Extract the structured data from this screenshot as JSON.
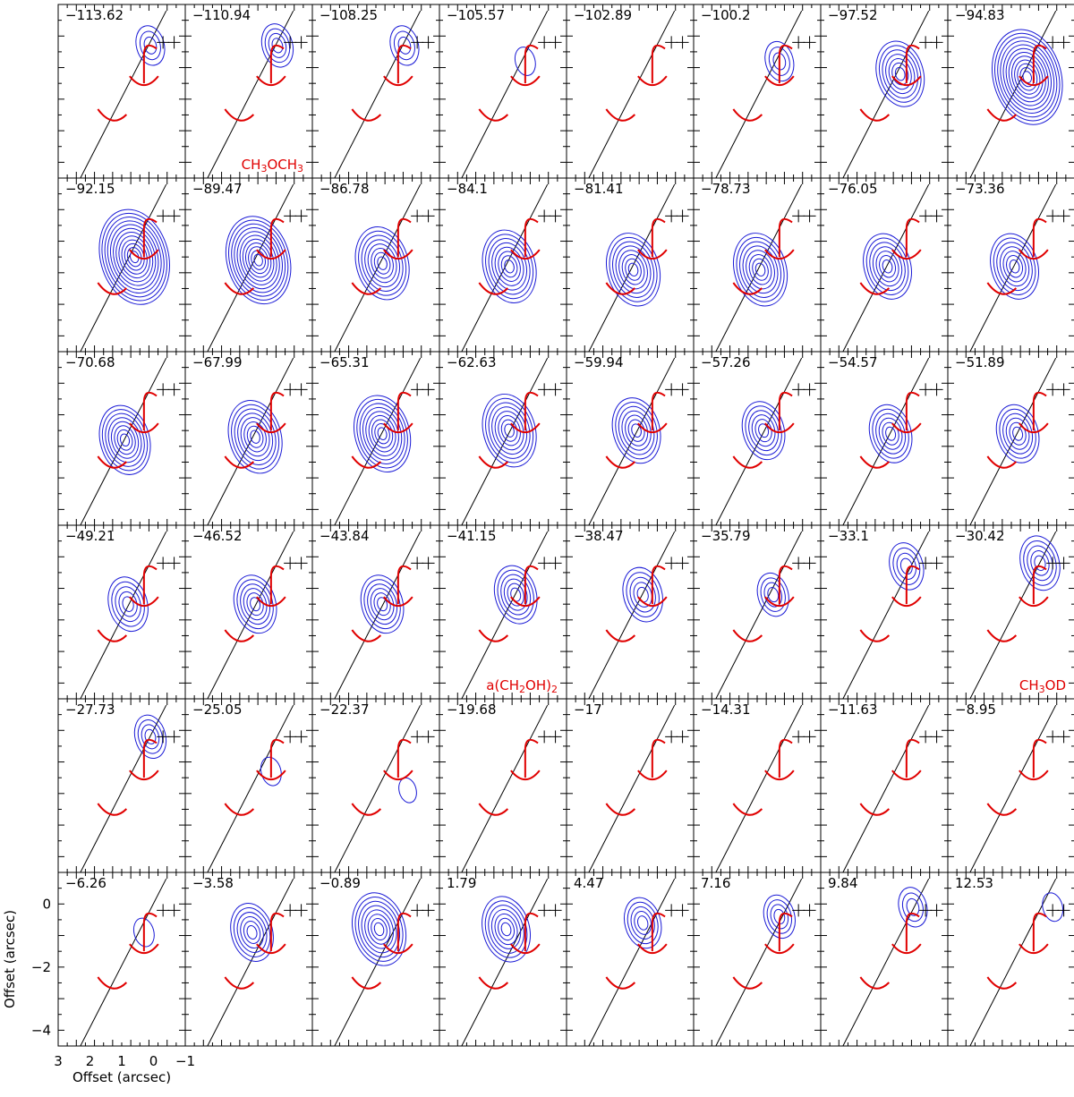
{
  "chart_data": {
    "type": "channel-map",
    "grid": {
      "rows": 6,
      "cols": 8
    },
    "colors": {
      "contour": "#1a1ad6",
      "overlay": "#e00000",
      "axis": "#000000",
      "background": "#ffffff"
    },
    "x_axis": {
      "label": "Offset (arcsec)",
      "ticks": [
        3,
        2,
        1,
        0,
        -1
      ],
      "range": [
        3,
        -1
      ]
    },
    "y_axis": {
      "label": "Offset (arcsec)",
      "ticks": [
        0,
        -2,
        -4
      ],
      "range": [
        1,
        -4.5
      ]
    },
    "channels": [
      {
        "velocity": "-113.62",
        "peak": 0.25,
        "dx": 0.1,
        "dy": -0.3
      },
      {
        "velocity": "-110.94",
        "peak": 0.3,
        "dx": 0.1,
        "dy": -0.3,
        "species": "CH3OCH3"
      },
      {
        "velocity": "-108.25",
        "peak": 0.25,
        "dx": 0.1,
        "dy": -0.3
      },
      {
        "velocity": "-105.57",
        "peak": 0.1,
        "dx": 0.3,
        "dy": -0.8
      },
      {
        "velocity": "-102.89",
        "peak": 0.0,
        "dx": 0,
        "dy": 0
      },
      {
        "velocity": "-100.2",
        "peak": 0.25,
        "dx": 0.3,
        "dy": -0.8
      },
      {
        "velocity": "-97.52",
        "peak": 0.6,
        "dx": 0.5,
        "dy": -1.2
      },
      {
        "velocity": "-94.83",
        "peak": 1.0,
        "dx": 0.5,
        "dy": -1.3
      },
      {
        "velocity": "-92.15",
        "peak": 1.0,
        "dx": 0.6,
        "dy": -1.5
      },
      {
        "velocity": "-89.47",
        "peak": 0.9,
        "dx": 0.7,
        "dy": -1.6
      },
      {
        "velocity": "-86.78",
        "peak": 0.7,
        "dx": 0.8,
        "dy": -1.7
      },
      {
        "velocity": "-84.1",
        "peak": 0.7,
        "dx": 0.8,
        "dy": -1.8
      },
      {
        "velocity": "-81.41",
        "peak": 0.7,
        "dx": 0.9,
        "dy": -1.9
      },
      {
        "velocity": "-78.73",
        "peak": 0.7,
        "dx": 0.9,
        "dy": -1.9
      },
      {
        "velocity": "-76.05",
        "peak": 0.6,
        "dx": 0.9,
        "dy": -1.8
      },
      {
        "velocity": "-73.36",
        "peak": 0.6,
        "dx": 0.9,
        "dy": -1.8
      },
      {
        "velocity": "-70.68",
        "peak": 0.65,
        "dx": 0.9,
        "dy": -1.8
      },
      {
        "velocity": "-67.99",
        "peak": 0.7,
        "dx": 0.8,
        "dy": -1.7
      },
      {
        "velocity": "-65.31",
        "peak": 0.75,
        "dx": 0.8,
        "dy": -1.6
      },
      {
        "velocity": "-62.63",
        "peak": 0.7,
        "dx": 0.8,
        "dy": -1.5
      },
      {
        "velocity": "-59.94",
        "peak": 0.6,
        "dx": 0.8,
        "dy": -1.5
      },
      {
        "velocity": "-57.26",
        "peak": 0.5,
        "dx": 0.8,
        "dy": -1.5
      },
      {
        "velocity": "-54.57",
        "peak": 0.5,
        "dx": 0.8,
        "dy": -1.6
      },
      {
        "velocity": "-51.89",
        "peak": 0.5,
        "dx": 0.8,
        "dy": -1.6
      },
      {
        "velocity": "-49.21",
        "peak": 0.45,
        "dx": 0.8,
        "dy": -1.5
      },
      {
        "velocity": "-46.52",
        "peak": 0.5,
        "dx": 0.8,
        "dy": -1.5
      },
      {
        "velocity": "-43.84",
        "peak": 0.5,
        "dx": 0.8,
        "dy": -1.5
      },
      {
        "velocity": "-41.15",
        "peak": 0.5,
        "dx": 0.6,
        "dy": -1.2,
        "species": "a(CH2OH)2"
      },
      {
        "velocity": "-38.47",
        "peak": 0.45,
        "dx": 0.6,
        "dy": -1.2
      },
      {
        "velocity": "-35.79",
        "peak": 0.3,
        "dx": 0.5,
        "dy": -1.2
      },
      {
        "velocity": "-33.1",
        "peak": 0.35,
        "dx": 0.3,
        "dy": -0.3
      },
      {
        "velocity": "-30.42",
        "peak": 0.45,
        "dx": 0.1,
        "dy": -0.2,
        "species": "CH3OD"
      },
      {
        "velocity": "-27.73",
        "peak": 0.3,
        "dx": 0.1,
        "dy": -0.2
      },
      {
        "velocity": "-25.05",
        "peak": 0.1,
        "dx": 0.3,
        "dy": -1.3
      },
      {
        "velocity": "-22.37",
        "peak": 0.05,
        "dx": 0.0,
        "dy": -1.9
      },
      {
        "velocity": "-19.68",
        "peak": 0.0,
        "dx": 0,
        "dy": 0
      },
      {
        "velocity": "-17",
        "peak": 0.0,
        "dx": 0,
        "dy": 0
      },
      {
        "velocity": "-14.31",
        "peak": 0.0,
        "dx": 0,
        "dy": 0
      },
      {
        "velocity": "-11.63",
        "peak": 0.0,
        "dx": 0,
        "dy": 0
      },
      {
        "velocity": "-8.95",
        "peak": 0.0,
        "dx": 0,
        "dy": 0
      },
      {
        "velocity": "-6.26",
        "peak": 0.1,
        "dx": 0.3,
        "dy": -0.9
      },
      {
        "velocity": "-3.58",
        "peak": 0.5,
        "dx": 0.9,
        "dy": -0.9
      },
      {
        "velocity": "-0.89",
        "peak": 0.7,
        "dx": 0.9,
        "dy": -0.8
      },
      {
        "velocity": "1.79",
        "peak": 0.6,
        "dx": 0.9,
        "dy": -0.8
      },
      {
        "velocity": "4.47",
        "peak": 0.4,
        "dx": 0.6,
        "dy": -0.6
      },
      {
        "velocity": "7.16",
        "peak": 0.3,
        "dx": 0.3,
        "dy": -0.4
      },
      {
        "velocity": "9.84",
        "peak": 0.25,
        "dx": 0.1,
        "dy": -0.1
      },
      {
        "velocity": "12.53",
        "peak": 0.1,
        "dx": -0.3,
        "dy": -0.1
      }
    ],
    "species_labels": [
      {
        "channel": 1,
        "text": "CH3OCH3",
        "base": "CH",
        "sub1": "3",
        "mid": "OCH",
        "sub2": "3"
      },
      {
        "channel": 27,
        "text": "a(CH2OH)2",
        "base": "a(CH",
        "sub1": "2",
        "mid": "OH)",
        "sub2": "2"
      },
      {
        "channel": 31,
        "text": "CH3OD",
        "base": "CH",
        "sub1": "3",
        "mid": "OD",
        "sub2": ""
      }
    ]
  }
}
